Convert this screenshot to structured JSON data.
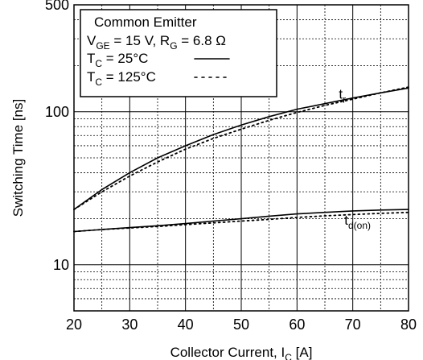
{
  "chart_data": {
    "type": "line",
    "title": "",
    "xlabel": {
      "main": "Collector Current, I",
      "sub": "C",
      "tail": " [A]"
    },
    "ylabel": "Switching Time [ns]",
    "xlim": [
      20,
      80
    ],
    "ylim": [
      5,
      500
    ],
    "yscale": "log",
    "grid": true,
    "x_ticks": [
      20,
      30,
      40,
      50,
      60,
      70,
      80
    ],
    "y_ticks": [
      {
        "value": 10,
        "label": "10"
      },
      {
        "value": 100,
        "label": "100"
      },
      {
        "value": 500,
        "label": "500"
      }
    ],
    "legend": {
      "position": "top-left",
      "title": "Common Emitter",
      "conditions": {
        "v_main": "V",
        "v_sub": "GE",
        "v_text": " = 15 V, R",
        "r_sub": "G",
        "r_text": " = 6.8 Ω"
      },
      "entries": [
        {
          "main": "T",
          "sub": "C",
          "text": " = 25°C",
          "style": "solid"
        },
        {
          "main": "T",
          "sub": "C",
          "text": " = 125°C",
          "style": "dotted"
        }
      ]
    },
    "series": [
      {
        "label_main": "t",
        "label_sub": "r",
        "label_at": [
          67.5,
          122
        ],
        "style": "solid",
        "x": [
          20,
          25,
          30,
          35,
          40,
          45,
          50,
          55,
          60,
          65,
          70,
          75,
          80
        ],
        "y": [
          23,
          31,
          40,
          50,
          60,
          71,
          82,
          93,
          104,
          113,
          123,
          133,
          143
        ]
      },
      {
        "label_main": "t",
        "label_sub": "r",
        "style": "dotted",
        "x": [
          20,
          25,
          30,
          35,
          40,
          45,
          50,
          55,
          60,
          65,
          70,
          75,
          80
        ],
        "y": [
          23,
          30,
          38,
          47,
          57,
          67,
          77,
          88,
          99,
          110,
          121,
          133,
          145
        ]
      },
      {
        "label_main": "t",
        "label_sub": "d(on)",
        "label_at": [
          68.5,
          18.3
        ],
        "style": "solid",
        "x": [
          20,
          25,
          30,
          35,
          40,
          45,
          50,
          55,
          60,
          65,
          70,
          75,
          80
        ],
        "y": [
          16.5,
          17.0,
          17.5,
          18.0,
          18.6,
          19.3,
          20.0,
          20.8,
          21.5,
          22.0,
          22.5,
          22.8,
          23.0
        ]
      },
      {
        "label_main": "t",
        "label_sub": "d(on)",
        "style": "dotted",
        "x": [
          20,
          25,
          30,
          35,
          40,
          45,
          50,
          55,
          60,
          65,
          70,
          75,
          80
        ],
        "y": [
          16.5,
          17.0,
          17.4,
          17.8,
          18.3,
          18.8,
          19.3,
          19.8,
          20.4,
          20.9,
          21.3,
          21.7,
          22.0
        ]
      }
    ]
  }
}
